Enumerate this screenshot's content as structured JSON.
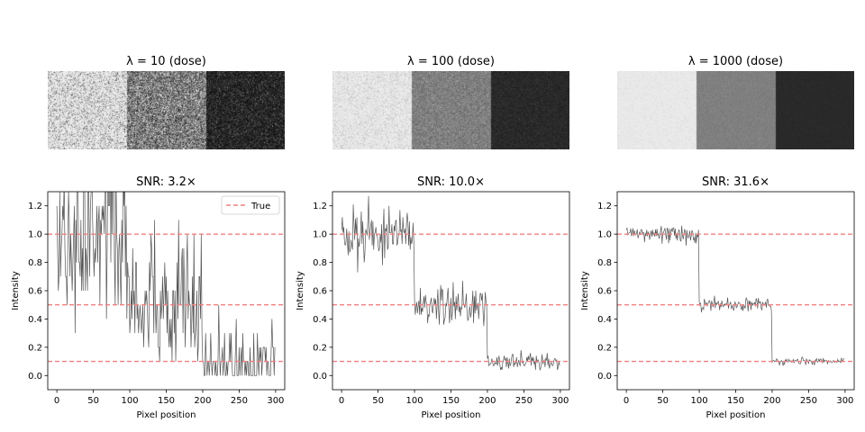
{
  "chart_data": [
    {
      "type": "heatmap",
      "title": "λ = 10 (dose)",
      "segments": [
        {
          "x_range": [
            0,
            100
          ],
          "true_intensity": 1.0
        },
        {
          "x_range": [
            100,
            200
          ],
          "true_intensity": 0.5
        },
        {
          "x_range": [
            200,
            300
          ],
          "true_intensity": 0.1
        }
      ],
      "dose": 10
    },
    {
      "type": "heatmap",
      "title": "λ = 100 (dose)",
      "segments": [
        {
          "x_range": [
            0,
            100
          ],
          "true_intensity": 1.0
        },
        {
          "x_range": [
            100,
            200
          ],
          "true_intensity": 0.5
        },
        {
          "x_range": [
            200,
            300
          ],
          "true_intensity": 0.1
        }
      ],
      "dose": 100
    },
    {
      "type": "heatmap",
      "title": "λ = 1000 (dose)",
      "segments": [
        {
          "x_range": [
            0,
            100
          ],
          "true_intensity": 1.0
        },
        {
          "x_range": [
            100,
            200
          ],
          "true_intensity": 0.5
        },
        {
          "x_range": [
            200,
            300
          ],
          "true_intensity": 0.1
        }
      ],
      "dose": 1000
    },
    {
      "type": "line",
      "title": "SNR: 3.2×",
      "xlabel": "Pixel position",
      "ylabel": "Intensity",
      "xlim": [
        -12.5,
        312.5
      ],
      "ylim": [
        -0.1,
        1.3
      ],
      "xticks": [
        0,
        50,
        100,
        150,
        200,
        250,
        300
      ],
      "yticks": [
        0.0,
        0.2,
        0.4,
        0.6,
        0.8,
        1.0,
        1.2
      ],
      "series": [
        {
          "name": "",
          "color": "#555555",
          "dose": 10,
          "segments": [
            {
              "x_range": [
                0,
                100
              ],
              "mean": 1.0
            },
            {
              "x_range": [
                100,
                200
              ],
              "mean": 0.5
            },
            {
              "x_range": [
                200,
                300
              ],
              "mean": 0.1
            }
          ]
        },
        {
          "name": "True",
          "color": "#f08080",
          "style": "dashed",
          "y_levels": [
            1.0,
            0.5,
            0.1
          ]
        }
      ],
      "legend": {
        "position": "top-right",
        "entries": [
          "True"
        ]
      }
    },
    {
      "type": "line",
      "title": "SNR: 10.0×",
      "xlabel": "Pixel position",
      "ylabel": "Intensity",
      "xlim": [
        -12.5,
        312.5
      ],
      "ylim": [
        -0.1,
        1.3
      ],
      "xticks": [
        0,
        50,
        100,
        150,
        200,
        250,
        300
      ],
      "yticks": [
        0.0,
        0.2,
        0.4,
        0.6,
        0.8,
        1.0,
        1.2
      ],
      "series": [
        {
          "name": "",
          "color": "#555555",
          "dose": 100,
          "segments": [
            {
              "x_range": [
                0,
                100
              ],
              "mean": 1.0
            },
            {
              "x_range": [
                100,
                200
              ],
              "mean": 0.5
            },
            {
              "x_range": [
                200,
                300
              ],
              "mean": 0.1
            }
          ]
        },
        {
          "name": "True",
          "color": "#f08080",
          "style": "dashed",
          "y_levels": [
            1.0,
            0.5,
            0.1
          ]
        }
      ]
    },
    {
      "type": "line",
      "title": "SNR: 31.6×",
      "xlabel": "Pixel position",
      "ylabel": "Intensity",
      "xlim": [
        -12.5,
        312.5
      ],
      "ylim": [
        -0.1,
        1.3
      ],
      "xticks": [
        0,
        50,
        100,
        150,
        200,
        250,
        300
      ],
      "yticks": [
        0.0,
        0.2,
        0.4,
        0.6,
        0.8,
        1.0,
        1.2
      ],
      "series": [
        {
          "name": "",
          "color": "#555555",
          "dose": 1000,
          "segments": [
            {
              "x_range": [
                0,
                100
              ],
              "mean": 1.0
            },
            {
              "x_range": [
                100,
                200
              ],
              "mean": 0.5
            },
            {
              "x_range": [
                200,
                300
              ],
              "mean": 0.1
            }
          ]
        },
        {
          "name": "True",
          "color": "#f08080",
          "style": "dashed",
          "y_levels": [
            1.0,
            0.5,
            0.1
          ]
        }
      ]
    }
  ]
}
